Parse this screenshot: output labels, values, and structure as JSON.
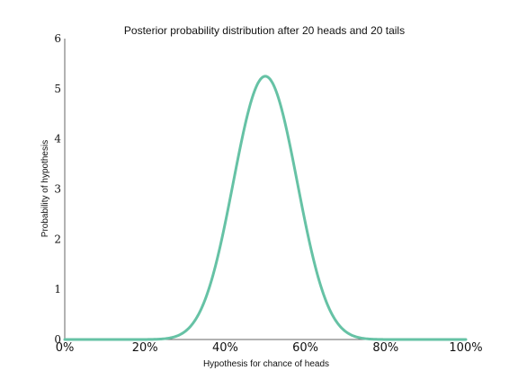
{
  "chart_data": {
    "type": "line",
    "title": "Posterior probability distribution after 20 heads and 20 tails",
    "xlabel": "Hypothesis for chance of heads",
    "ylabel": "Probability of hypothesis",
    "x_ticks": [
      "0%",
      "20%",
      "40%",
      "60%",
      "80%",
      "100%"
    ],
    "y_ticks": [
      "0",
      "1",
      "2",
      "3",
      "4",
      "5",
      "6"
    ],
    "xlim": [
      0,
      1
    ],
    "ylim": [
      0,
      6
    ],
    "grid": false,
    "line_color": "#66c2a5",
    "series": [
      {
        "x": [
          0,
          0.05,
          0.1,
          0.15,
          0.2,
          0.25,
          0.3,
          0.35,
          0.4,
          0.425,
          0.45,
          0.475,
          0.5,
          0.525,
          0.55,
          0.575,
          0.6,
          0.65,
          0.7,
          0.75,
          0.8,
          0.85,
          0.9,
          0.95,
          1
        ],
        "values": [
          0,
          0,
          0,
          0,
          0.0002,
          0.014,
          0.21,
          1.15,
          2.98,
          3.98,
          4.73,
          5.13,
          5.25,
          5.13,
          4.73,
          3.98,
          2.98,
          1.15,
          0.21,
          0.014,
          0.0002,
          0,
          0,
          0,
          0
        ]
      }
    ]
  }
}
